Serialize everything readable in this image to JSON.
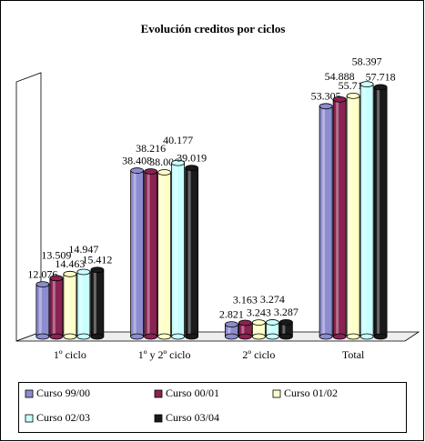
{
  "chart_data": {
    "type": "bar3d",
    "title": "Evolución creditos por ciclos",
    "categories": [
      "1º ciclo",
      "1º y 2º ciclo",
      "2º ciclo",
      "Total"
    ],
    "series": [
      {
        "name": "Curso 99/00",
        "color": "#8c8cd0",
        "values": [
          12.076,
          38.408,
          2.821,
          53.305
        ]
      },
      {
        "name": "Curso 00/01",
        "color": "#8a2252",
        "values": [
          13.509,
          38.216,
          3.163,
          54.888
        ]
      },
      {
        "name": "Curso 01/02",
        "color": "#ffffc8",
        "values": [
          14.463,
          38.006,
          3.243,
          55.712
        ]
      },
      {
        "name": "Curso 02/03",
        "color": "#c8ffff",
        "values": [
          14.947,
          40.177,
          3.274,
          58.397
        ]
      },
      {
        "name": "Curso 03/04",
        "color": "#1a1a1a",
        "values": [
          15.412,
          39.019,
          3.287,
          57.718
        ]
      }
    ],
    "ylim": [
      0,
      60
    ]
  }
}
